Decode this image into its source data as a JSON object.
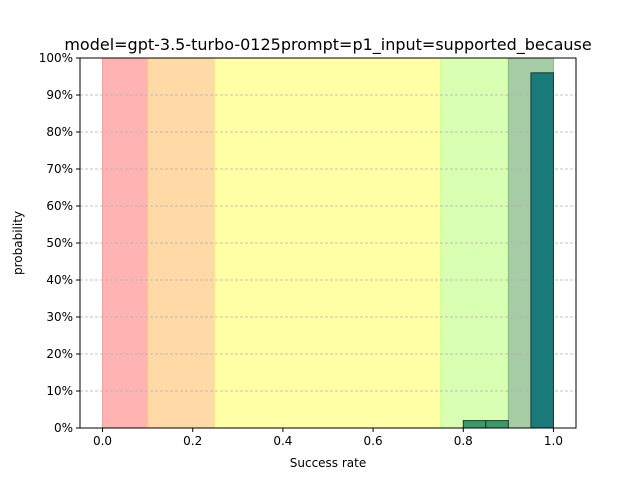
{
  "chart_data": {
    "type": "bar",
    "title": "model=gpt-3.5-turbo-0125prompt=p1_input=supported_because",
    "xlabel": "Success rate",
    "ylabel": "probability",
    "xlim": [
      -0.05,
      1.05
    ],
    "ylim": [
      0,
      1
    ],
    "x_ticks": [
      0.0,
      0.2,
      0.4,
      0.6,
      0.8,
      1.0
    ],
    "x_tick_labels": [
      "0.0",
      "0.2",
      "0.4",
      "0.6",
      "0.8",
      "1.0"
    ],
    "y_ticks": [
      0,
      0.1,
      0.2,
      0.3,
      0.4,
      0.5,
      0.6,
      0.7,
      0.8,
      0.9,
      1.0
    ],
    "y_tick_labels": [
      "0%",
      "10%",
      "20%",
      "30%",
      "40%",
      "50%",
      "60%",
      "70%",
      "80%",
      "90%",
      "100%"
    ],
    "grid": {
      "y": true,
      "style": "dashed"
    },
    "bands": [
      {
        "from": 0.0,
        "to": 0.1,
        "color": "#ff9999"
      },
      {
        "from": 0.1,
        "to": 0.25,
        "color": "#ffcc88"
      },
      {
        "from": 0.25,
        "to": 0.75,
        "color": "#ffff88"
      },
      {
        "from": 0.75,
        "to": 0.9,
        "color": "#ccff99"
      },
      {
        "from": 0.9,
        "to": 1.0,
        "color": "#88bb88"
      }
    ],
    "bars": [
      {
        "x0": 0.8,
        "x1": 0.85,
        "value": 0.02,
        "color": "#3a9a6a"
      },
      {
        "x0": 0.85,
        "x1": 0.9,
        "value": 0.02,
        "color": "#3a9a6a"
      },
      {
        "x0": 0.95,
        "x1": 1.0,
        "value": 0.96,
        "color": "#1a7a7a"
      }
    ]
  }
}
